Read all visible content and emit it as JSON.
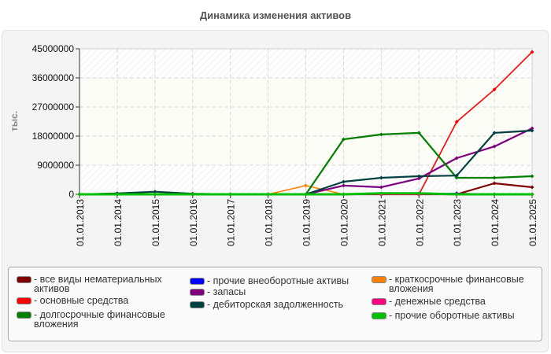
{
  "title": "Динамика изменения активов",
  "chart_data": {
    "type": "line",
    "title": "Динамика изменения активов",
    "xlabel": "",
    "ylabel": "тыс.",
    "ylim": [
      0,
      45000000
    ],
    "yticks": [
      "0",
      "9000000",
      "18000000",
      "27000000",
      "36000000",
      "45000000"
    ],
    "grid": true,
    "legend_position": "bottom",
    "categories": [
      "01.01.2013",
      "01.01.2014",
      "01.01.2015",
      "01.01.2016",
      "01.01.2017",
      "01.01.2018",
      "01.01.2019",
      "01.01.2020",
      "01.01.2021",
      "01.01.2022",
      "01.01.2023",
      "01.01.2024",
      "01.01.2025"
    ],
    "series": [
      {
        "name": "все виды нематериальных активов",
        "color": "#7f0000",
        "values": [
          0,
          0,
          0,
          0,
          0,
          0,
          0,
          0,
          0,
          0,
          0,
          3400000,
          2200000
        ]
      },
      {
        "name": "основные средства",
        "color": "#ff0000",
        "values": [
          0,
          0,
          0,
          0,
          0,
          0,
          0,
          0,
          0,
          0,
          22400000,
          32400000,
          44000000
        ]
      },
      {
        "name": "долгосрочные финансовые вложения",
        "color": "#007f00",
        "values": [
          0,
          0,
          0,
          0,
          0,
          0,
          0,
          17000000,
          18500000,
          19000000,
          5100000,
          5100000,
          5600000
        ]
      },
      {
        "name": "прочие внеоборотные активы",
        "color": "#0000ff",
        "values": [
          0,
          0,
          0,
          0,
          0,
          0,
          0,
          0,
          0,
          0,
          300000,
          0,
          0
        ]
      },
      {
        "name": "запасы",
        "color": "#7f007f",
        "values": [
          0,
          0,
          0,
          0,
          0,
          0,
          0,
          2700000,
          2200000,
          4900000,
          11200000,
          14800000,
          20400000
        ]
      },
      {
        "name": "дебиторская задолженность",
        "color": "#004040",
        "values": [
          0,
          300000,
          800000,
          200000,
          0,
          0,
          0,
          3900000,
          5100000,
          5600000,
          5800000,
          19000000,
          19700000
        ]
      },
      {
        "name": "краткосрочные финансовые вложения",
        "color": "#ff7f00",
        "values": [
          0,
          0,
          0,
          0,
          0,
          0,
          2700000,
          0,
          0,
          0,
          0,
          0,
          0
        ]
      },
      {
        "name": "денежные средства",
        "color": "#ff0080",
        "values": [
          0,
          0,
          0,
          0,
          0,
          0,
          0,
          0,
          0,
          0,
          0,
          0,
          0
        ]
      },
      {
        "name": "прочие оборотные активы",
        "color": "#00c000",
        "values": [
          0,
          0,
          0,
          0,
          0,
          0,
          0,
          0,
          300000,
          300000,
          0,
          0,
          0
        ]
      }
    ]
  },
  "legend": [
    {
      "label": "- все виды нематериальных\nактивов",
      "color": "#7f0000"
    },
    {
      "label": "- основные средства",
      "color": "#ff0000"
    },
    {
      "label": "- долгосрочные финансовые\nвложения",
      "color": "#007f00"
    },
    {
      "label": "- прочие внеоборотные активы",
      "color": "#0000ff"
    },
    {
      "label": "- запасы",
      "color": "#7f007f"
    },
    {
      "label": "- дебиторская задолженность",
      "color": "#004040"
    },
    {
      "label": "- краткосрочные финансовые\nвложения",
      "color": "#ff7f00"
    },
    {
      "label": "- денежные средства",
      "color": "#ff0080"
    },
    {
      "label": "- прочие оборотные активы",
      "color": "#00c000"
    }
  ]
}
